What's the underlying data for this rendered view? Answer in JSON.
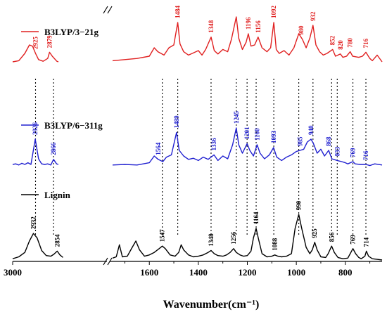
{
  "chart_data": {
    "type": "line",
    "title": "",
    "xlabel": "Wavenumber(cm⁻¹)",
    "ylabel": "",
    "x_reversed": true,
    "x_break": [
      2700,
      1750
    ],
    "xlim_left_segment": [
      3000,
      2700
    ],
    "xlim_right_segment": [
      1750,
      650
    ],
    "x_ticks": [
      "3000",
      "1600",
      "1400",
      "1200",
      "1000",
      "800"
    ],
    "legend_position": "left, beside each trace",
    "grid": false,
    "series": [
      {
        "name": "B3LYP/3−21g",
        "color": "#e02020",
        "points": [
          [
            3000,
            0.3
          ],
          [
            2980,
            0.32
          ],
          [
            2960,
            0.45
          ],
          [
            2945,
            0.6
          ],
          [
            2935,
            0.58
          ],
          [
            2925,
            0.45
          ],
          [
            2915,
            0.34
          ],
          [
            2900,
            0.31
          ],
          [
            2885,
            0.36
          ],
          [
            2879,
            0.47
          ],
          [
            2870,
            0.4
          ],
          [
            2855,
            0.31
          ],
          [
            2850,
            0.3
          ],
          [
            1750,
            0.32
          ],
          [
            1700,
            0.34
          ],
          [
            1650,
            0.36
          ],
          [
            1600,
            0.4
          ],
          [
            1580,
            0.55
          ],
          [
            1565,
            0.48
          ],
          [
            1540,
            0.42
          ],
          [
            1520,
            0.55
          ],
          [
            1500,
            0.6
          ],
          [
            1484,
            1.0
          ],
          [
            1475,
            0.62
          ],
          [
            1460,
            0.48
          ],
          [
            1440,
            0.42
          ],
          [
            1420,
            0.46
          ],
          [
            1400,
            0.5
          ],
          [
            1385,
            0.42
          ],
          [
            1370,
            0.52
          ],
          [
            1348,
            0.74
          ],
          [
            1335,
            0.5
          ],
          [
            1320,
            0.44
          ],
          [
            1300,
            0.52
          ],
          [
            1280,
            0.48
          ],
          [
            1265,
            0.7
          ],
          [
            1245,
            1.1
          ],
          [
            1235,
            0.72
          ],
          [
            1220,
            0.52
          ],
          [
            1205,
            0.65
          ],
          [
            1196,
            0.8
          ],
          [
            1185,
            0.58
          ],
          [
            1170,
            0.6
          ],
          [
            1156,
            0.74
          ],
          [
            1140,
            0.55
          ],
          [
            1120,
            0.48
          ],
          [
            1105,
            0.55
          ],
          [
            1092,
            1.0
          ],
          [
            1082,
            0.52
          ],
          [
            1070,
            0.45
          ],
          [
            1050,
            0.5
          ],
          [
            1030,
            0.42
          ],
          [
            1010,
            0.55
          ],
          [
            990,
            0.8
          ],
          [
            975,
            0.7
          ],
          [
            960,
            0.55
          ],
          [
            945,
            0.72
          ],
          [
            932,
            0.95
          ],
          [
            920,
            0.6
          ],
          [
            905,
            0.48
          ],
          [
            890,
            0.42
          ],
          [
            875,
            0.45
          ],
          [
            852,
            0.52
          ],
          [
            840,
            0.4
          ],
          [
            820,
            0.44
          ],
          [
            810,
            0.38
          ],
          [
            795,
            0.4
          ],
          [
            780,
            0.48
          ],
          [
            770,
            0.4
          ],
          [
            745,
            0.38
          ],
          [
            730,
            0.4
          ],
          [
            716,
            0.47
          ],
          [
            700,
            0.36
          ],
          [
            690,
            0.32
          ],
          [
            670,
            0.42
          ],
          [
            650,
            0.3
          ]
        ],
        "peak_labels": [
          {
            "x": 2925,
            "label": "2925"
          },
          {
            "x": 2879,
            "label": "2879"
          },
          {
            "x": 1484,
            "label": "1484"
          },
          {
            "x": 1348,
            "label": "1348"
          },
          {
            "x": 1196,
            "label": "1196"
          },
          {
            "x": 1156,
            "label": "1156"
          },
          {
            "x": 1092,
            "label": "1092"
          },
          {
            "x": 980,
            "label": "980"
          },
          {
            "x": 932,
            "label": "932"
          },
          {
            "x": 852,
            "label": "852"
          },
          {
            "x": 820,
            "label": "820"
          },
          {
            "x": 780,
            "label": "780"
          },
          {
            "x": 716,
            "label": "716"
          }
        ]
      },
      {
        "name": "B3LYP/6−311g",
        "color": "#2020d0",
        "points": [
          [
            3000,
            0.05
          ],
          [
            2990,
            0.06
          ],
          [
            2980,
            0.04
          ],
          [
            2970,
            0.07
          ],
          [
            2960,
            0.05
          ],
          [
            2950,
            0.08
          ],
          [
            2940,
            0.05
          ],
          [
            2926,
            0.5
          ],
          [
            2915,
            0.15
          ],
          [
            2905,
            0.06
          ],
          [
            2895,
            0.05
          ],
          [
            2885,
            0.06
          ],
          [
            2875,
            0.04
          ],
          [
            2866,
            0.14
          ],
          [
            2856,
            0.06
          ],
          [
            2850,
            0.05
          ],
          [
            1750,
            0.04
          ],
          [
            1700,
            0.05
          ],
          [
            1650,
            0.04
          ],
          [
            1600,
            0.08
          ],
          [
            1580,
            0.2
          ],
          [
            1564,
            0.14
          ],
          [
            1545,
            0.1
          ],
          [
            1530,
            0.18
          ],
          [
            1510,
            0.22
          ],
          [
            1489,
            0.62
          ],
          [
            1478,
            0.3
          ],
          [
            1460,
            0.2
          ],
          [
            1440,
            0.14
          ],
          [
            1420,
            0.16
          ],
          [
            1400,
            0.12
          ],
          [
            1380,
            0.18
          ],
          [
            1360,
            0.14
          ],
          [
            1336,
            0.22
          ],
          [
            1320,
            0.12
          ],
          [
            1300,
            0.2
          ],
          [
            1280,
            0.15
          ],
          [
            1260,
            0.4
          ],
          [
            1245,
            0.7
          ],
          [
            1235,
            0.4
          ],
          [
            1220,
            0.25
          ],
          [
            1201,
            0.42
          ],
          [
            1190,
            0.3
          ],
          [
            1175,
            0.2
          ],
          [
            1160,
            0.4
          ],
          [
            1148,
            0.25
          ],
          [
            1130,
            0.15
          ],
          [
            1110,
            0.22
          ],
          [
            1093,
            0.35
          ],
          [
            1080,
            0.18
          ],
          [
            1060,
            0.12
          ],
          [
            1040,
            0.18
          ],
          [
            1020,
            0.22
          ],
          [
            1000,
            0.28
          ],
          [
            985,
            0.3
          ],
          [
            970,
            0.32
          ],
          [
            955,
            0.45
          ],
          [
            940,
            0.5
          ],
          [
            930,
            0.42
          ],
          [
            915,
            0.25
          ],
          [
            900,
            0.32
          ],
          [
            885,
            0.2
          ],
          [
            868,
            0.3
          ],
          [
            855,
            0.15
          ],
          [
            833,
            0.12
          ],
          [
            815,
            0.1
          ],
          [
            800,
            0.08
          ],
          [
            790,
            0.06
          ],
          [
            769,
            0.1
          ],
          [
            760,
            0.06
          ],
          [
            740,
            0.05
          ],
          [
            716,
            0.05
          ],
          [
            700,
            0.03
          ],
          [
            680,
            0.06
          ],
          [
            650,
            0.04
          ]
        ],
        "peak_labels": [
          {
            "x": 2926,
            "label": "2926"
          },
          {
            "x": 2866,
            "label": "2866"
          },
          {
            "x": 1564,
            "label": "1564"
          },
          {
            "x": 1489,
            "label": "1489"
          },
          {
            "x": 1336,
            "label": "1336"
          },
          {
            "x": 1245,
            "label": "1245"
          },
          {
            "x": 1201,
            "label": "1201"
          },
          {
            "x": 1160,
            "label": "1160"
          },
          {
            "x": 1093,
            "label": "1093"
          },
          {
            "x": 985,
            "label": "985"
          },
          {
            "x": 940,
            "label": "940"
          },
          {
            "x": 868,
            "label": "868"
          },
          {
            "x": 833,
            "label": "833"
          },
          {
            "x": 769,
            "label": "769"
          },
          {
            "x": 716,
            "label": "716"
          }
        ]
      },
      {
        "name": "Lignin",
        "color": "#000000",
        "points": [
          [
            3000,
            0.02
          ],
          [
            2980,
            0.05
          ],
          [
            2960,
            0.12
          ],
          [
            2945,
            0.3
          ],
          [
            2932,
            0.42
          ],
          [
            2920,
            0.35
          ],
          [
            2905,
            0.15
          ],
          [
            2890,
            0.07
          ],
          [
            2875,
            0.06
          ],
          [
            2865,
            0.09
          ],
          [
            2854,
            0.14
          ],
          [
            2845,
            0.08
          ],
          [
            2835,
            0.04
          ],
          [
            1750,
            0.03
          ],
          [
            1735,
            0.05
          ],
          [
            1722,
            0.24
          ],
          [
            1710,
            0.05
          ],
          [
            1690,
            0.06
          ],
          [
            1670,
            0.2
          ],
          [
            1655,
            0.3
          ],
          [
            1640,
            0.16
          ],
          [
            1620,
            0.06
          ],
          [
            1600,
            0.08
          ],
          [
            1580,
            0.12
          ],
          [
            1560,
            0.18
          ],
          [
            1547,
            0.22
          ],
          [
            1535,
            0.18
          ],
          [
            1515,
            0.08
          ],
          [
            1495,
            0.06
          ],
          [
            1480,
            0.12
          ],
          [
            1470,
            0.24
          ],
          [
            1460,
            0.16
          ],
          [
            1440,
            0.08
          ],
          [
            1420,
            0.05
          ],
          [
            1400,
            0.06
          ],
          [
            1380,
            0.08
          ],
          [
            1360,
            0.12
          ],
          [
            1348,
            0.15
          ],
          [
            1335,
            0.1
          ],
          [
            1320,
            0.07
          ],
          [
            1300,
            0.06
          ],
          [
            1285,
            0.08
          ],
          [
            1270,
            0.12
          ],
          [
            1256,
            0.18
          ],
          [
            1245,
            0.12
          ],
          [
            1230,
            0.08
          ],
          [
            1215,
            0.06
          ],
          [
            1200,
            0.07
          ],
          [
            1185,
            0.14
          ],
          [
            1175,
            0.35
          ],
          [
            1164,
            0.5
          ],
          [
            1155,
            0.34
          ],
          [
            1140,
            0.1
          ],
          [
            1120,
            0.05
          ],
          [
            1100,
            0.06
          ],
          [
            1088,
            0.08
          ],
          [
            1075,
            0.06
          ],
          [
            1060,
            0.05
          ],
          [
            1040,
            0.06
          ],
          [
            1020,
            0.1
          ],
          [
            1005,
            0.5
          ],
          [
            990,
            0.72
          ],
          [
            978,
            0.5
          ],
          [
            960,
            0.2
          ],
          [
            945,
            0.1
          ],
          [
            935,
            0.16
          ],
          [
            925,
            0.28
          ],
          [
            915,
            0.16
          ],
          [
            900,
            0.05
          ],
          [
            880,
            0.04
          ],
          [
            870,
            0.1
          ],
          [
            856,
            0.22
          ],
          [
            845,
            0.12
          ],
          [
            830,
            0.04
          ],
          [
            810,
            0.02
          ],
          [
            790,
            0.03
          ],
          [
            780,
            0.1
          ],
          [
            769,
            0.18
          ],
          [
            758,
            0.1
          ],
          [
            745,
            0.04
          ],
          [
            735,
            0.02
          ],
          [
            720,
            0.06
          ],
          [
            714,
            0.14
          ],
          [
            705,
            0.06
          ],
          [
            690,
            0.02
          ],
          [
            670,
            0.01
          ],
          [
            650,
            0.0
          ]
        ],
        "peak_labels": [
          {
            "x": 2932,
            "label": "2932"
          },
          {
            "x": 2854,
            "label": "2854"
          },
          {
            "x": 1547,
            "label": "1547"
          },
          {
            "x": 1348,
            "label": "1348"
          },
          {
            "x": 1256,
            "label": "1256"
          },
          {
            "x": 1164,
            "label": "1164"
          },
          {
            "x": 1088,
            "label": "1088"
          },
          {
            "x": 990,
            "label": "990"
          },
          {
            "x": 925,
            "label": "925"
          },
          {
            "x": 856,
            "label": "856"
          },
          {
            "x": 769,
            "label": "769"
          },
          {
            "x": 714,
            "label": "714"
          }
        ]
      }
    ],
    "guide_lines_x": [
      2925,
      2866,
      1547,
      1484,
      1348,
      1245,
      1201,
      1164,
      1092,
      990,
      932,
      856,
      833,
      769,
      716
    ]
  }
}
